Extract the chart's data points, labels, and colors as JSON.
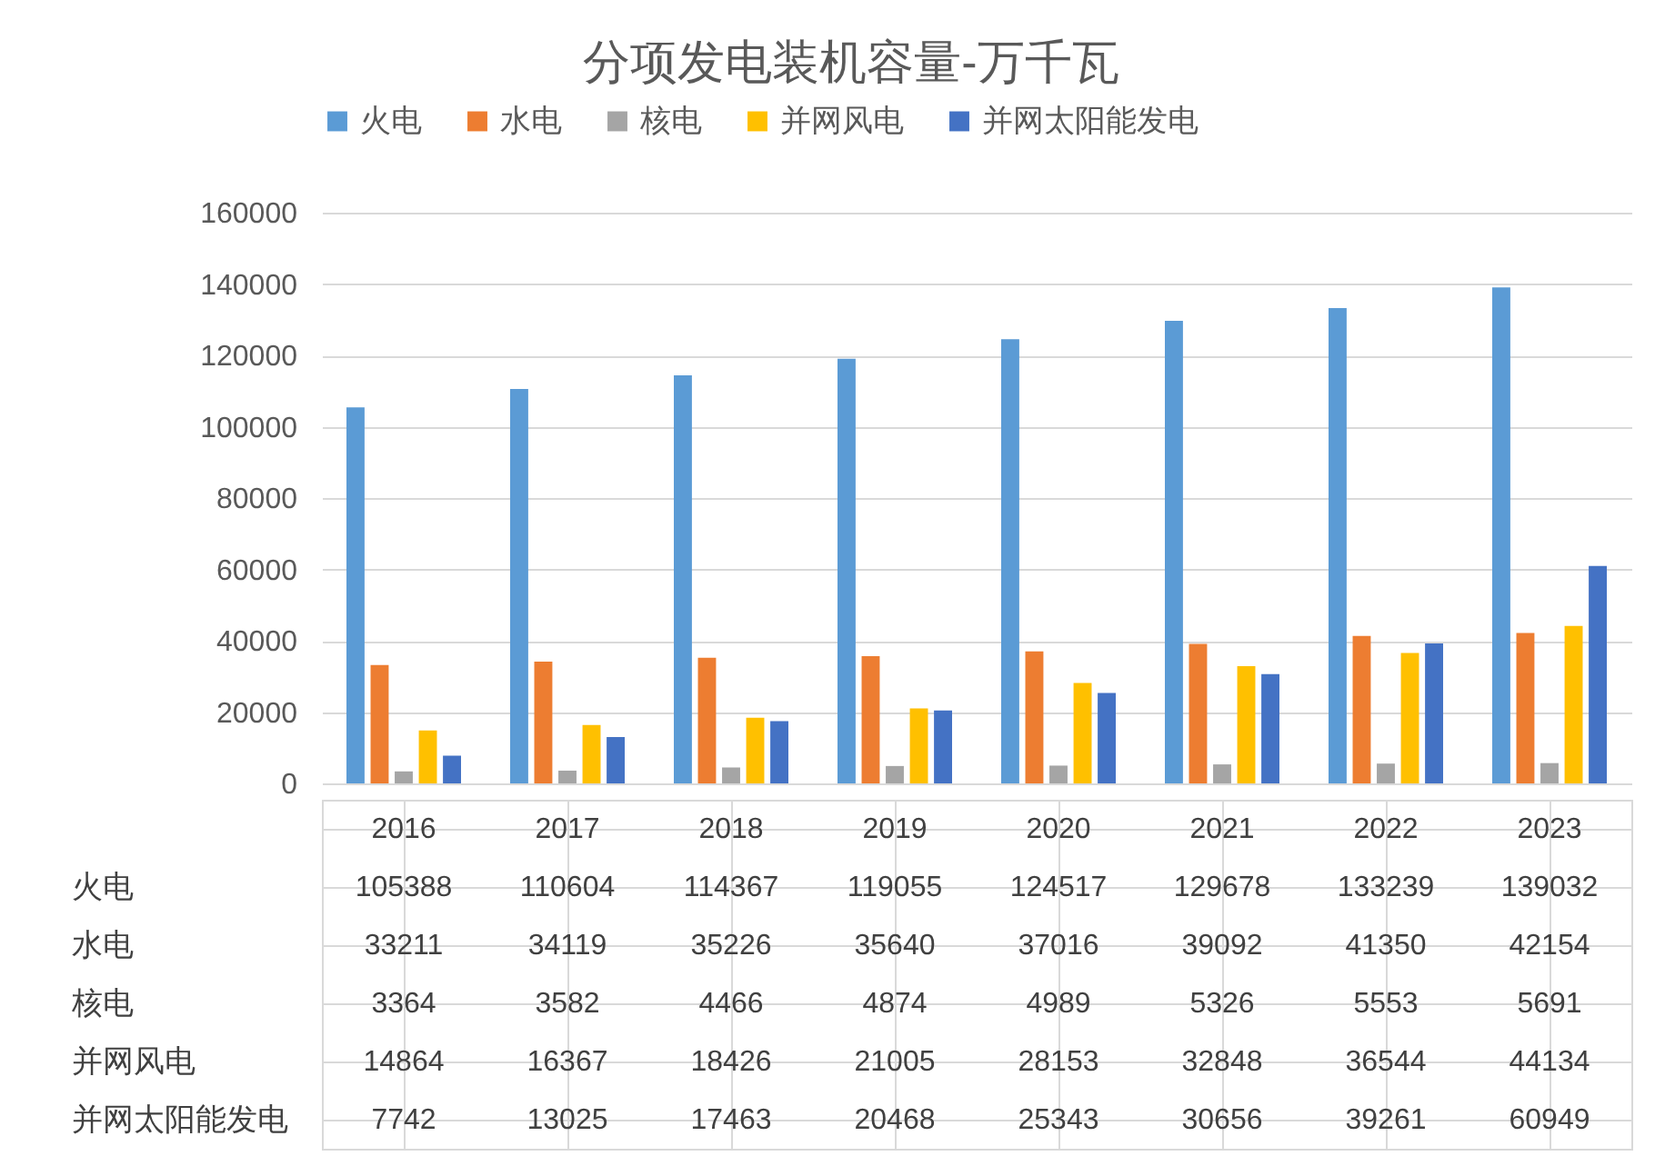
{
  "chart_data": {
    "type": "bar",
    "title": "分项发电装机容量-万千瓦",
    "categories": [
      "2016",
      "2017",
      "2018",
      "2019",
      "2020",
      "2021",
      "2022",
      "2023"
    ],
    "series": [
      {
        "name": "火电",
        "color": "#5b9bd5",
        "values": [
          105388,
          110604,
          114367,
          119055,
          124517,
          129678,
          133239,
          139032
        ]
      },
      {
        "name": "水电",
        "color": "#ed7d31",
        "values": [
          33211,
          34119,
          35226,
          35640,
          37016,
          39092,
          41350,
          42154
        ]
      },
      {
        "name": "核电",
        "color": "#a5a5a5",
        "values": [
          3364,
          3582,
          4466,
          4874,
          4989,
          5326,
          5553,
          5691
        ]
      },
      {
        "name": "并网风电",
        "color": "#ffc000",
        "values": [
          14864,
          16367,
          18426,
          21005,
          28153,
          32848,
          36544,
          44134
        ]
      },
      {
        "name": "并网太阳能发电",
        "color": "#4472c4",
        "values": [
          7742,
          13025,
          17463,
          20468,
          25343,
          30656,
          39261,
          60949
        ]
      }
    ],
    "ylim": [
      0,
      160000
    ],
    "yticks": [
      0,
      20000,
      40000,
      60000,
      80000,
      100000,
      120000,
      140000,
      160000
    ],
    "grid": "y",
    "legend": "top",
    "data_labels": true
  }
}
